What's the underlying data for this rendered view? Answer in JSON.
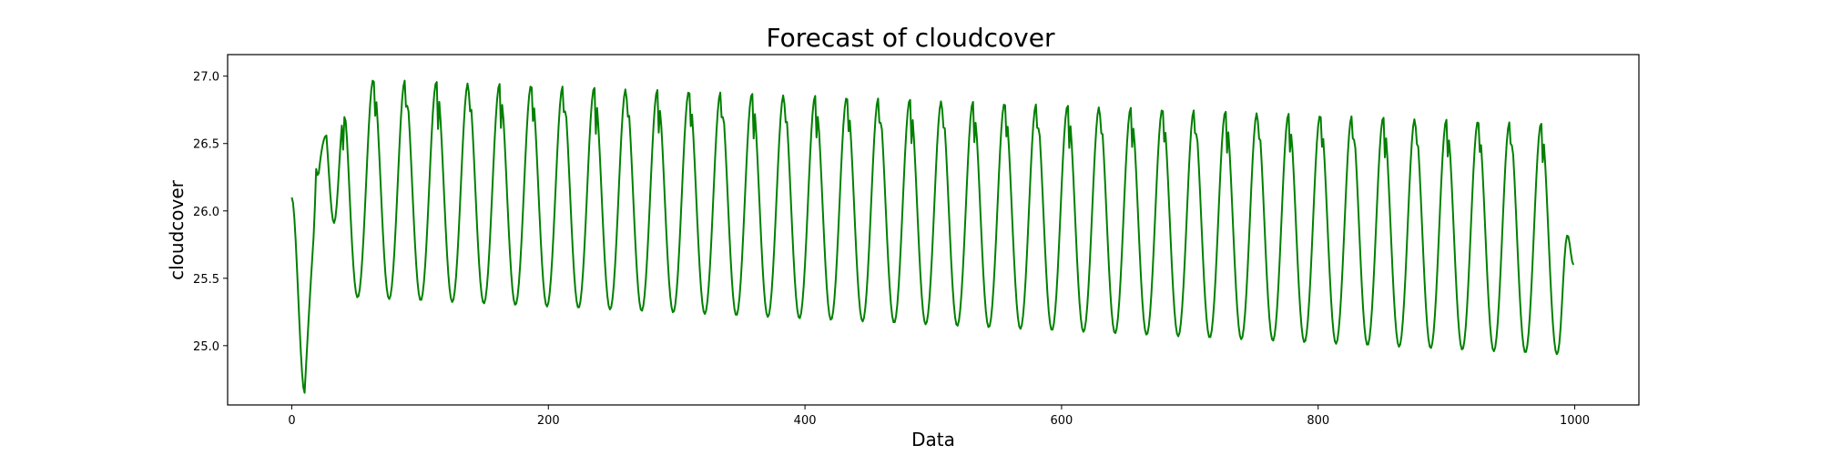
{
  "chart_data": {
    "type": "line",
    "title": "Forecast of cloudcover",
    "xlabel": "Data",
    "ylabel": "cloudcover",
    "xlim": [
      -50,
      1050
    ],
    "ylim": [
      24.56,
      27.16
    ],
    "xticks": [
      0,
      200,
      400,
      600,
      800,
      1000
    ],
    "xtick_labels": [
      "0",
      "200",
      "400",
      "600",
      "800",
      "1000"
    ],
    "yticks": [
      25.0,
      25.5,
      26.0,
      26.5,
      27.0
    ],
    "ytick_labels": [
      "25.0",
      "25.5",
      "26.0",
      "26.5",
      "27.0"
    ],
    "grid": false,
    "legend": "none",
    "series": [
      {
        "color": "#008000",
        "model": {
          "period": 24.6,
          "n_points": 1000,
          "start_value": 26.1,
          "initial_dip": {
            "x": 10,
            "value": 24.65
          },
          "first_peak": {
            "x": 27,
            "value": 26.56
          },
          "peak_start": 27.0,
          "peak_end": 26.64,
          "trough_start": 25.38,
          "trough_end": 24.93,
          "end_value": 25.6
        }
      }
    ]
  }
}
